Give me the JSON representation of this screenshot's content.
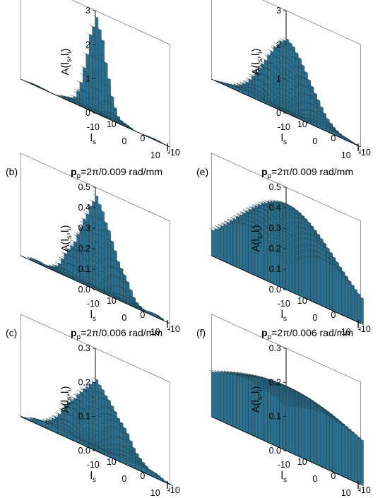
{
  "figure": {
    "labels_line1": [
      "(b)",
      "(e)"
    ],
    "labels_line2": [
      "(c)",
      "(f)"
    ]
  },
  "chart_data": [
    {
      "panel": "",
      "type": "3d-bar",
      "title": "",
      "zlabel": "A(l_s,l_i)",
      "xlabel": "l_s",
      "ylabel": "l_i",
      "zlim": [
        0,
        3
      ],
      "zticks": [
        "0",
        "1",
        "2",
        "3"
      ],
      "xticks": [
        "-10",
        "0",
        "10"
      ],
      "yticks": [
        "10",
        "0",
        "-10"
      ],
      "l_range": [
        -12,
        12
      ],
      "model": {
        "peak": 2.7,
        "width_l": 2.2,
        "ring_amp": 0.12
      },
      "colors": {
        "face": "#5aa3c2",
        "shade": "#2c6f8e",
        "floor": "#d8dde0"
      }
    },
    {
      "panel": "(b)",
      "type": "3d-bar",
      "title": "p_p=2π/0.009 rad/mm",
      "zlabel": "A(l_s,l_i)",
      "xlabel": "l_s",
      "ylabel": "l_i",
      "zlim": [
        0,
        0.5
      ],
      "zticks": [
        "0.0",
        "0.1",
        "0.2",
        "0.3",
        "0.4",
        "0.5"
      ],
      "xticks": [
        "-10",
        "0",
        "10"
      ],
      "yticks": [
        "10",
        "0",
        "-10"
      ],
      "l_range": [
        -12,
        12
      ],
      "model": {
        "peak": 0.41,
        "width_l": 4.0,
        "ring_amp": 0.05
      },
      "colors": {
        "face": "#5aa3c2",
        "shade": "#2c6f8e",
        "floor": "#d8dde0"
      }
    },
    {
      "panel": "(c)",
      "type": "3d-bar",
      "title": "p_p=2π/0.006 rad/mm",
      "zlabel": "A(l_s,l_i)",
      "xlabel": "l_s",
      "ylabel": "l_i",
      "zlim": [
        0,
        0.3
      ],
      "zticks": [
        "0.0",
        "0.1",
        "0.2",
        "0.3"
      ],
      "xticks": [
        "-10",
        "0",
        "10"
      ],
      "yticks": [
        "10",
        "0",
        "-10"
      ],
      "l_range": [
        -12,
        12
      ],
      "model": {
        "peak": 0.19,
        "width_l": 5.5,
        "ring_amp": 0.02
      },
      "colors": {
        "face": "#5aa3c2",
        "shade": "#2c6f8e",
        "floor": "#d8dde0"
      }
    },
    {
      "panel": "",
      "type": "3d-bar",
      "title": "",
      "zlabel": "A(l_s,l_i)",
      "xlabel": "l_s",
      "ylabel": "l_i",
      "zlim": [
        0,
        3
      ],
      "zticks": [
        "0",
        "1",
        "2",
        "3"
      ],
      "xticks": [
        "-10",
        "0",
        "10"
      ],
      "yticks": [
        "10",
        "0",
        "-10"
      ],
      "l_range": [
        -12,
        12
      ],
      "model": {
        "peak": 2.1,
        "width_l": 5.0,
        "ring_amp": 0.08
      },
      "colors": {
        "face": "#5aa3c2",
        "shade": "#2c6f8e",
        "floor": "#d8dde0"
      }
    },
    {
      "panel": "(e)",
      "type": "3d-bar",
      "title": "p_p=2π/0.009 rad/mm",
      "zlabel": "A(l_s,l_i)",
      "xlabel": "l_s",
      "ylabel": "l_i",
      "zlim": [
        0,
        0.5
      ],
      "zticks": [
        "0.0",
        "0.1",
        "0.2",
        "0.3",
        "0.4",
        "0.5"
      ],
      "xticks": [
        "-10",
        "0",
        "10"
      ],
      "yticks": [
        "10",
        "0",
        "-10"
      ],
      "l_range": [
        -12,
        12
      ],
      "model": {
        "peak": 0.42,
        "width_l": 11.0,
        "ring_amp": 0.0
      },
      "colors": {
        "face": "#5aa3c2",
        "shade": "#2c6f8e",
        "floor": "#d8dde0"
      }
    },
    {
      "panel": "(f)",
      "type": "3d-bar",
      "title": "p_p=2π/0.006 rad/mm",
      "zlabel": "A(l_s,l_i)",
      "xlabel": "l_s",
      "ylabel": "l_i",
      "zlim": [
        0,
        0.3
      ],
      "zticks": [
        "0.0",
        "0.1",
        "0.2",
        "0.3"
      ],
      "xticks": [
        "-10",
        "0",
        "10"
      ],
      "yticks": [
        "10",
        "0",
        "-10"
      ],
      "l_range": [
        -12,
        12
      ],
      "model": {
        "peak": 0.19,
        "width_l": 20.0,
        "ring_amp": 0.0
      },
      "colors": {
        "face": "#5aa3c2",
        "shade": "#2c6f8e",
        "floor": "#d8dde0"
      }
    }
  ]
}
